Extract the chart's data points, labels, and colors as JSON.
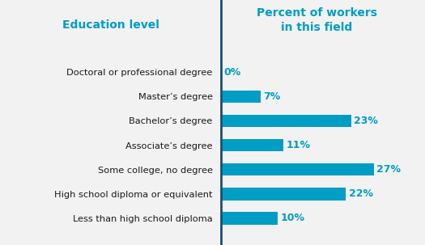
{
  "categories": [
    "Less than high school diploma",
    "High school diploma or equivalent",
    "Some college, no degree",
    "Associate’s degree",
    "Bachelor’s degree",
    "Master’s degree",
    "Doctoral or professional degree"
  ],
  "values": [
    10,
    22,
    27,
    11,
    23,
    7,
    0
  ],
  "bar_color": "#009dc4",
  "divider_color": "#1b4f72",
  "background_color": "#f2f2f2",
  "label_color_left": "#1a1a1a",
  "label_color_right": "#009dc4",
  "header_left": "Education level",
  "header_right": "Percent of workers\nin this field",
  "header_color": "#009dc4",
  "xlim": [
    0,
    33
  ],
  "bar_height": 0.52,
  "label_fontsize": 8.2,
  "pct_fontsize": 9.0,
  "header_fontsize": 10.0
}
